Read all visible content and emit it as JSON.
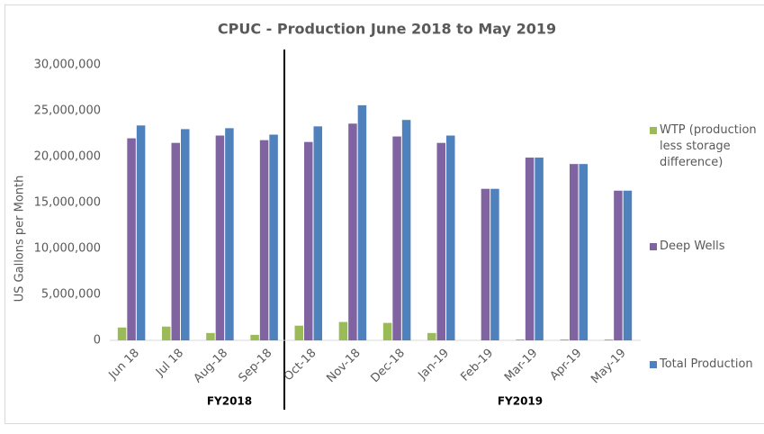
{
  "chart_data": {
    "type": "bar",
    "title": "CPUC - Production  June  2018 to May  2019",
    "y_label": "US Gallons per Month",
    "categories": [
      "Jun 18",
      "Jul 18",
      "Aug-18",
      "Sep-18",
      "Oct-18",
      "Nov-18",
      "Dec-18",
      "Jan-19",
      "Feb-19",
      "Mar-19",
      "Apr-19",
      "May-19"
    ],
    "series": [
      {
        "name": "WTP (production less storage difference)",
        "color": "#9bbb59",
        "values": [
          1400000,
          1500000,
          800000,
          600000,
          1600000,
          2000000,
          1900000,
          800000,
          0,
          100000,
          100000,
          100000
        ]
      },
      {
        "name": "Deep Wells",
        "color": "#8064a2",
        "values": [
          22000000,
          21500000,
          22300000,
          21800000,
          21600000,
          23600000,
          22200000,
          21500000,
          16500000,
          19900000,
          19200000,
          16300000
        ]
      },
      {
        "name": "Total Production",
        "color": "#4f81bd",
        "values": [
          23400000,
          23000000,
          23100000,
          22400000,
          23300000,
          25600000,
          24000000,
          22300000,
          16500000,
          19900000,
          19200000,
          16300000
        ]
      }
    ],
    "ylim": [
      0,
      30000000
    ],
    "yticks": [
      0,
      {
        "value": 5000000,
        "label": "5,000,000"
      },
      {
        "value": 10000000,
        "label": "10,000,000"
      },
      {
        "value": 15000000,
        "label": "15,000,000"
      },
      {
        "value": 20000000,
        "label": "20,000,000"
      },
      {
        "value": 25000000,
        "label": "25,000,000"
      },
      {
        "value": 30000000,
        "label": "30,000,000"
      }
    ],
    "grid": false,
    "legend": "right",
    "annotations": [
      "FY2018",
      "FY2019"
    ]
  }
}
